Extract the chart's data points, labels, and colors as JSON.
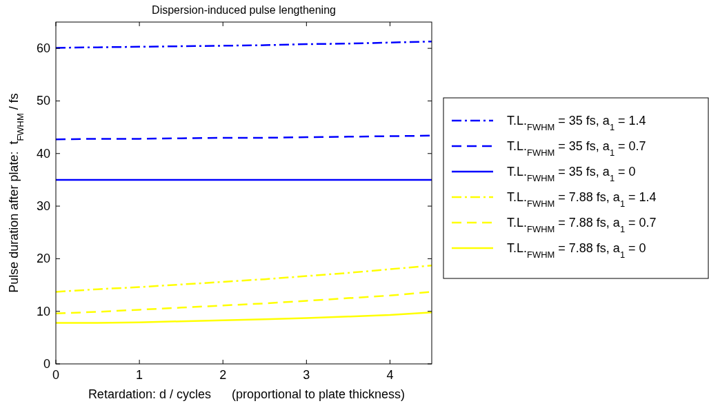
{
  "chart_data": {
    "type": "line",
    "title": "Dispersion-induced pulse lengthening",
    "xlabel": "Retardation: d / cycles      (proportional to plate thickness)",
    "ylabel": "Pulse duration after plate:  t$_{FWHM}$ / fs",
    "x": [
      0,
      0.5,
      1,
      1.5,
      2,
      2.5,
      3,
      3.5,
      4,
      4.5
    ],
    "series": [
      {
        "name": "T.L.$_{FWHM}$ = 35 fs, a$_{1}$ = 1.4",
        "color": "#0000ff",
        "line_style": "dotted",
        "values": [
          60.1,
          60.2,
          60.3,
          60.4,
          60.5,
          60.6,
          60.8,
          60.9,
          61.1,
          61.3
        ]
      },
      {
        "name": "T.L.$_{FWHM}$ = 35 fs, a$_{1}$ = 0.7",
        "color": "#0000ff",
        "line_style": "dashed",
        "values": [
          42.7,
          42.8,
          42.8,
          42.9,
          43.0,
          43.0,
          43.1,
          43.2,
          43.3,
          43.4
        ]
      },
      {
        "name": "T.L.$_{FWHM}$ = 35 fs, a$_{1}$ = 0",
        "color": "#0000ff",
        "line_style": "solid",
        "values": [
          35,
          35,
          35,
          35,
          35,
          35,
          35,
          35,
          35,
          35
        ]
      },
      {
        "name": "T.L.$_{FWHM}$ = 7.88 fs, a$_{1}$ = 1.4",
        "color": "#ffff00",
        "line_style": "dotted",
        "values": [
          13.7,
          14.2,
          14.6,
          15.1,
          15.6,
          16.1,
          16.7,
          17.3,
          18.0,
          18.7
        ]
      },
      {
        "name": "T.L.$_{FWHM}$ = 7.88 fs, a$_{1}$ = 0.7",
        "color": "#ffff00",
        "line_style": "dashed",
        "values": [
          9.6,
          9.9,
          10.3,
          10.7,
          11.1,
          11.5,
          12.0,
          12.5,
          13.0,
          13.7
        ]
      },
      {
        "name": "T.L.$_{FWHM}$ = 7.88 fs, a$_{1}$ = 0",
        "color": "#ffff00",
        "line_style": "solid",
        "values": [
          7.8,
          7.8,
          7.9,
          8.1,
          8.3,
          8.5,
          8.7,
          9.0,
          9.3,
          9.8
        ]
      }
    ],
    "xlim": [
      0,
      4.5
    ],
    "xticks": [
      0,
      1,
      2,
      3,
      4
    ],
    "ylim": [
      0,
      65
    ],
    "yticks": [
      0,
      10,
      20,
      30,
      40,
      50,
      60
    ],
    "grid": false,
    "legend": "right"
  }
}
